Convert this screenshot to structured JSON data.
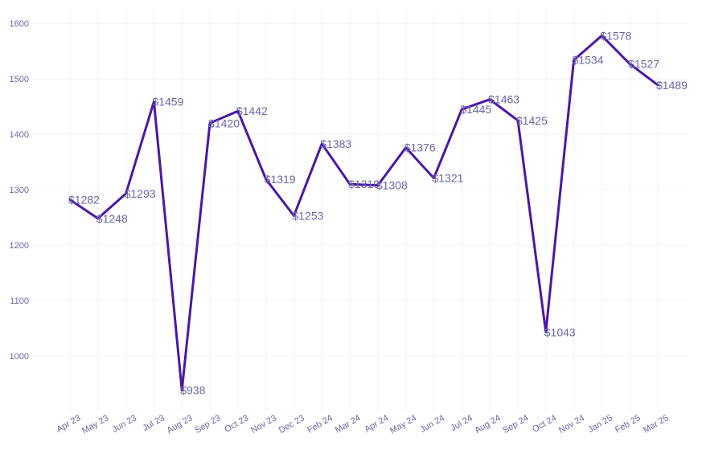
{
  "chart_data": {
    "type": "line",
    "title": "",
    "xlabel": "",
    "ylabel": "",
    "categories": [
      "Apr 23",
      "May 23",
      "Jun 23",
      "Jul 23",
      "Aug 23",
      "Sep 23",
      "Oct 23",
      "Nov 23",
      "Dec 23",
      "Feb 24",
      "Mar 24",
      "Apr 24",
      "May 24",
      "Jun 24",
      "Jul 24",
      "Aug 24",
      "Sep 24",
      "Oct 24",
      "Nov 24",
      "Jan 25",
      "Feb 25",
      "Mar 25"
    ],
    "series": [
      {
        "values": [
          1282,
          1248,
          1293,
          1459,
          938,
          1420,
          1442,
          1319,
          1253,
          1383,
          1310,
          1308,
          1376,
          1321,
          1445,
          1463,
          1425,
          1043,
          1534,
          1578,
          1527,
          1489
        ],
        "labels": [
          "$1282",
          "$1248",
          "$1293",
          "$1459",
          "$938",
          "$1420",
          "$1442",
          "$1319",
          "$1253",
          "$1383",
          "$1310",
          "$1308",
          "$1376",
          "$1321",
          "$1445",
          "$1463",
          "$1425",
          "$1043",
          "$1534",
          "$1578",
          "$1527",
          "$1489"
        ]
      }
    ],
    "ylim": [
      910,
      1625
    ],
    "yticks": [
      1000,
      1100,
      1200,
      1300,
      1400,
      1500,
      1600
    ],
    "grid": true,
    "line_color": "#4b17a8",
    "label_color": "#6a66a8"
  }
}
